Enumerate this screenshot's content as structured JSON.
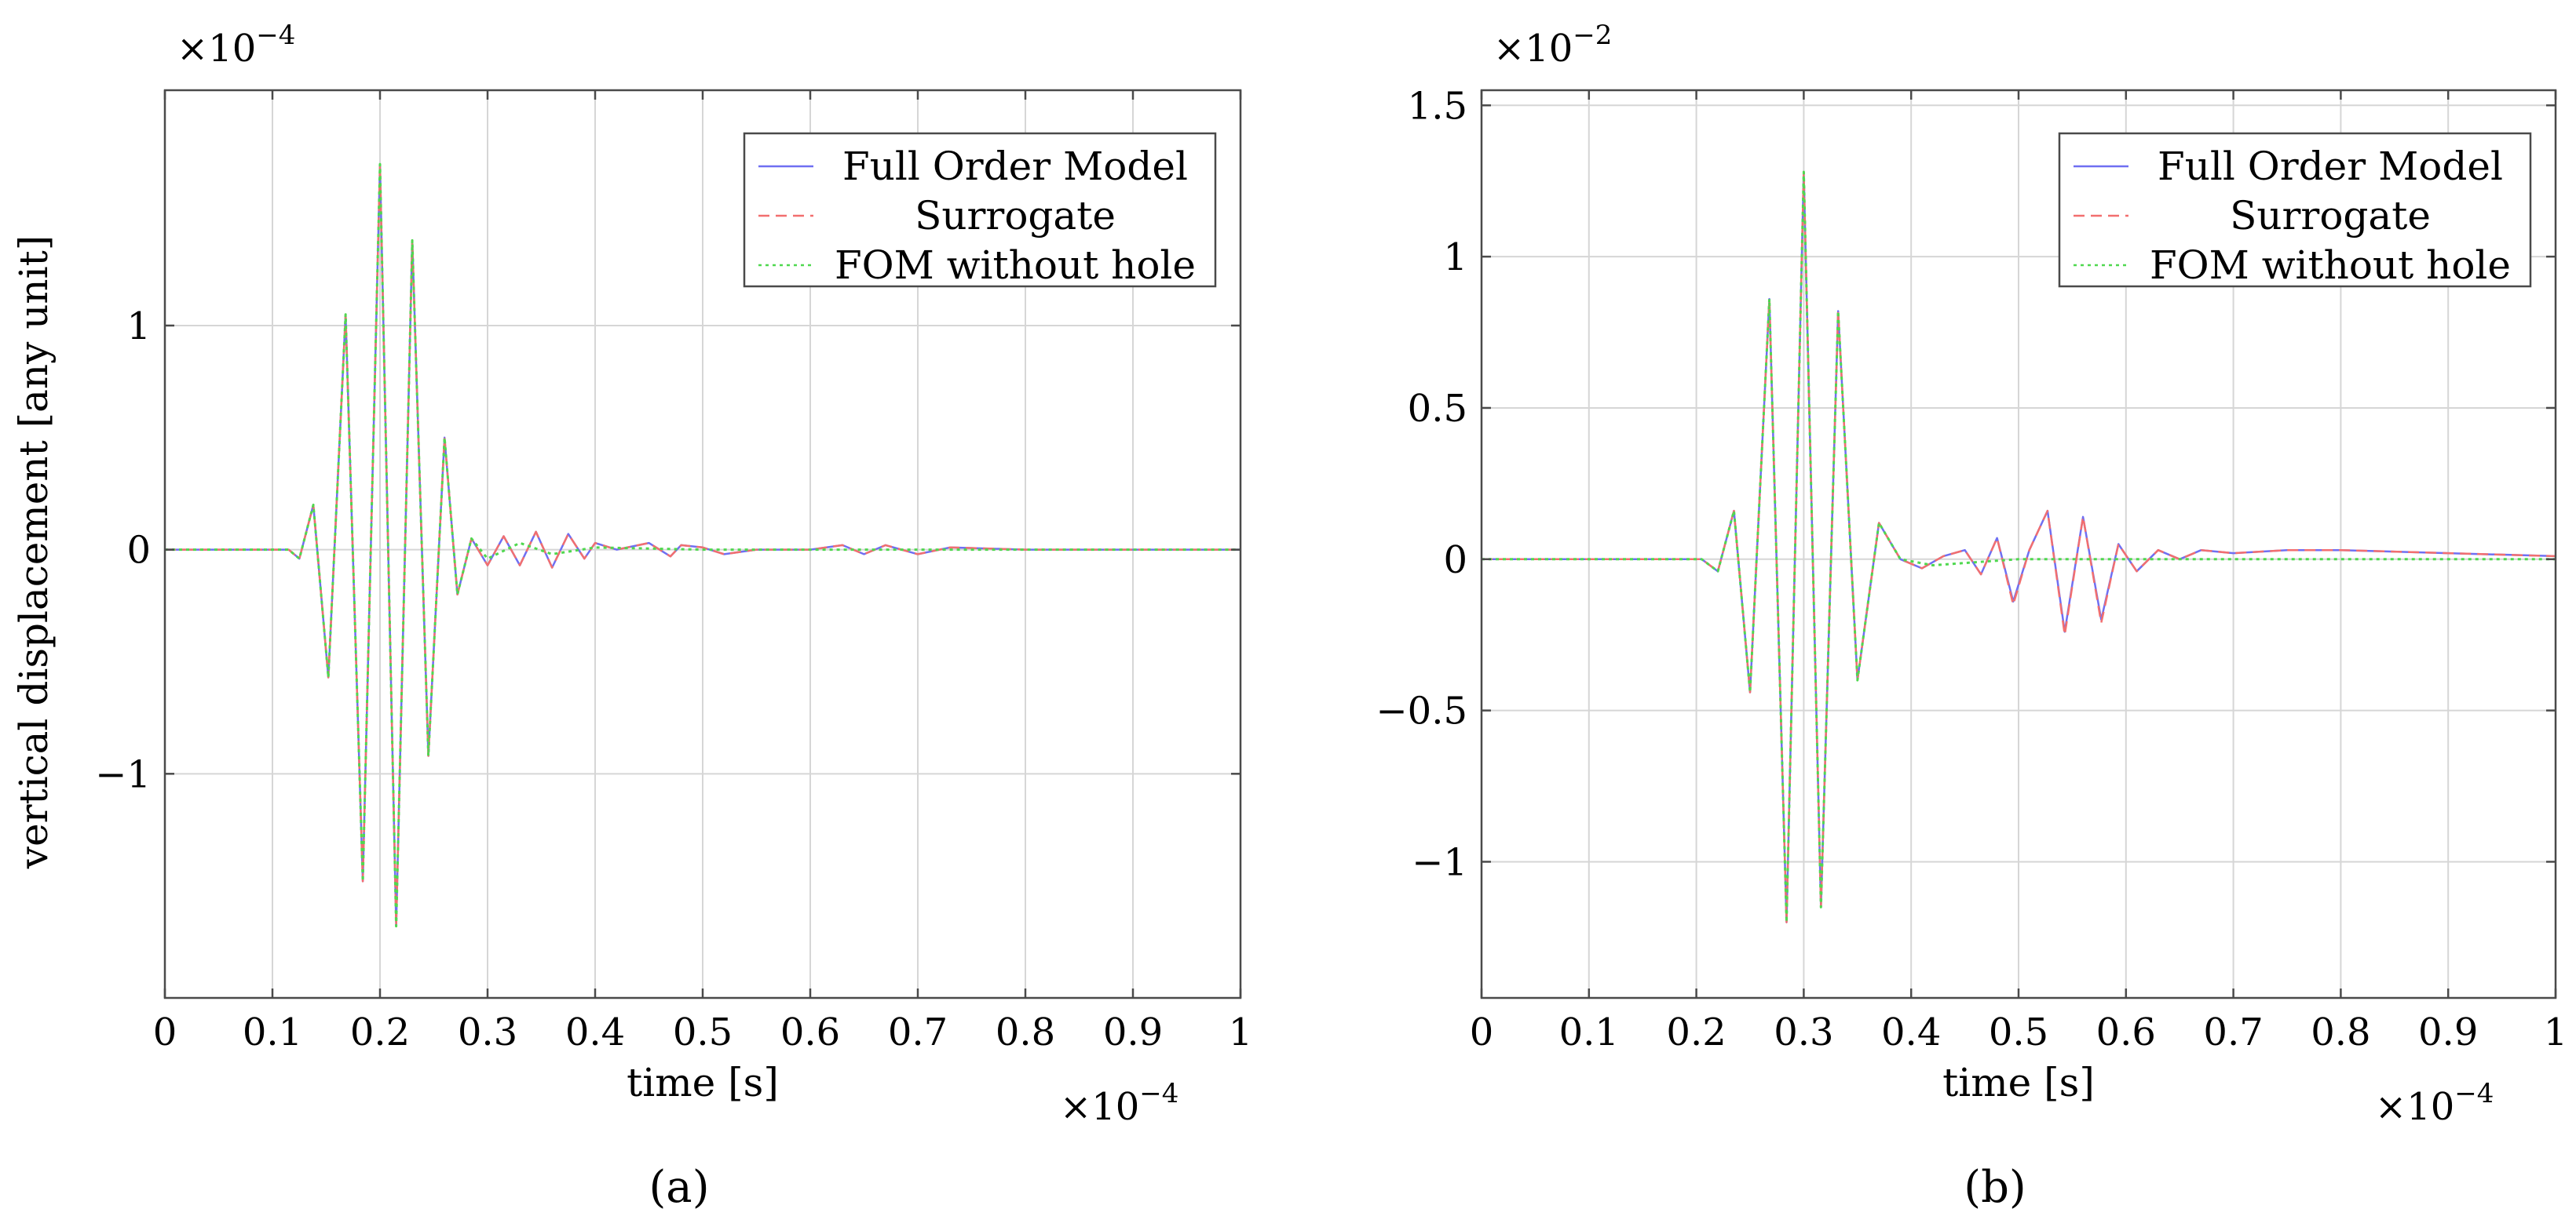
{
  "chart_data": [
    {
      "type": "line",
      "panel_label": "(a)",
      "exponent_y": "×10",
      "exponent_y_power": "−4",
      "exponent_x": "×10",
      "exponent_x_power": "−4",
      "xlabel": "time [s]",
      "ylabel": "vertical displacement [any unit]",
      "xlim": [
        0,
        1
      ],
      "ylim": [
        -2.0,
        2.05
      ],
      "xticks": [
        0,
        0.1,
        0.2,
        0.3,
        0.4,
        0.5,
        0.6,
        0.7,
        0.8,
        0.9,
        1
      ],
      "xtick_labels": [
        "0",
        "0.1",
        "0.2",
        "0.3",
        "0.4",
        "0.5",
        "0.6",
        "0.7",
        "0.8",
        "0.9",
        "1"
      ],
      "yticks": [
        -1,
        0,
        1
      ],
      "ytick_labels": [
        "−1",
        "0",
        "1"
      ],
      "grid": true,
      "legend_position": "top-right",
      "series": [
        {
          "name": "Full Order Model",
          "color": "#6f6ff2",
          "dash": "solid",
          "x": [
            0,
            0.115,
            0.125,
            0.138,
            0.152,
            0.168,
            0.184,
            0.2,
            0.215,
            0.23,
            0.245,
            0.26,
            0.272,
            0.285,
            0.3,
            0.315,
            0.33,
            0.345,
            0.36,
            0.375,
            0.39,
            0.4,
            0.42,
            0.45,
            0.47,
            0.48,
            0.5,
            0.52,
            0.55,
            0.6,
            0.63,
            0.65,
            0.67,
            0.7,
            0.73,
            0.8,
            0.9,
            1
          ],
          "y": [
            0,
            0,
            -0.04,
            0.2,
            -0.57,
            1.05,
            -1.48,
            1.72,
            -1.68,
            1.38,
            -0.92,
            0.5,
            -0.2,
            0.05,
            -0.07,
            0.06,
            -0.07,
            0.08,
            -0.08,
            0.07,
            -0.04,
            0.03,
            0.0,
            0.03,
            -0.03,
            0.02,
            0.01,
            -0.02,
            0.0,
            0.0,
            0.02,
            -0.02,
            0.02,
            -0.02,
            0.01,
            0.0,
            0.0,
            0.0
          ]
        },
        {
          "name": "Surrogate",
          "color": "#f26f6f",
          "dash": "dashed",
          "x": [
            0,
            0.115,
            0.125,
            0.138,
            0.152,
            0.168,
            0.184,
            0.2,
            0.215,
            0.23,
            0.245,
            0.26,
            0.272,
            0.285,
            0.3,
            0.315,
            0.33,
            0.345,
            0.36,
            0.375,
            0.39,
            0.4,
            0.42,
            0.45,
            0.47,
            0.48,
            0.5,
            0.52,
            0.55,
            0.6,
            0.63,
            0.65,
            0.67,
            0.7,
            0.73,
            0.8,
            0.9,
            1
          ],
          "y": [
            0,
            0,
            -0.04,
            0.2,
            -0.57,
            1.05,
            -1.48,
            1.72,
            -1.68,
            1.38,
            -0.92,
            0.5,
            -0.2,
            0.05,
            -0.07,
            0.06,
            -0.07,
            0.08,
            -0.08,
            0.07,
            -0.04,
            0.03,
            0.0,
            0.03,
            -0.03,
            0.02,
            0.01,
            -0.02,
            0.0,
            0.0,
            0.02,
            -0.02,
            0.02,
            -0.02,
            0.01,
            0.0,
            0.0,
            0.0
          ]
        },
        {
          "name": "FOM without hole",
          "color": "#4fd84f",
          "dash": "dotted",
          "x": [
            0,
            0.115,
            0.125,
            0.138,
            0.152,
            0.168,
            0.184,
            0.2,
            0.215,
            0.23,
            0.245,
            0.26,
            0.272,
            0.285,
            0.3,
            0.33,
            0.36,
            0.4,
            0.5,
            0.6,
            0.7,
            0.8,
            0.9,
            1
          ],
          "y": [
            0,
            0,
            -0.04,
            0.2,
            -0.57,
            1.05,
            -1.48,
            1.72,
            -1.68,
            1.38,
            -0.92,
            0.5,
            -0.2,
            0.05,
            -0.04,
            0.03,
            -0.02,
            0.01,
            0.0,
            0.0,
            0.0,
            0.0,
            0.0,
            0.0
          ]
        }
      ]
    },
    {
      "type": "line",
      "panel_label": "(b)",
      "exponent_y": "×10",
      "exponent_y_power": "−2",
      "exponent_x": "×10",
      "exponent_x_power": "−4",
      "xlabel": "time [s]",
      "ylabel": "",
      "xlim": [
        0,
        1
      ],
      "ylim": [
        -1.45,
        1.55
      ],
      "xticks": [
        0,
        0.1,
        0.2,
        0.3,
        0.4,
        0.5,
        0.6,
        0.7,
        0.8,
        0.9,
        1
      ],
      "xtick_labels": [
        "0",
        "0.1",
        "0.2",
        "0.3",
        "0.4",
        "0.5",
        "0.6",
        "0.7",
        "0.8",
        "0.9",
        "1"
      ],
      "yticks": [
        -1,
        -0.5,
        0,
        0.5,
        1,
        1.5
      ],
      "ytick_labels": [
        "−1",
        "−0.5",
        "0",
        "0.5",
        "1",
        "1.5"
      ],
      "grid": true,
      "legend_position": "top-right",
      "series": [
        {
          "name": "Full Order Model",
          "color": "#6f6ff2",
          "dash": "solid",
          "x": [
            0,
            0.205,
            0.22,
            0.235,
            0.25,
            0.268,
            0.284,
            0.3,
            0.316,
            0.332,
            0.35,
            0.37,
            0.39,
            0.41,
            0.43,
            0.45,
            0.465,
            0.48,
            0.495,
            0.51,
            0.527,
            0.543,
            0.56,
            0.577,
            0.593,
            0.61,
            0.63,
            0.65,
            0.67,
            0.7,
            0.75,
            0.8,
            0.9,
            1
          ],
          "y": [
            0,
            0,
            -0.04,
            0.16,
            -0.44,
            0.86,
            -1.2,
            1.28,
            -1.15,
            0.82,
            -0.4,
            0.12,
            0.0,
            -0.03,
            0.01,
            0.03,
            -0.05,
            0.07,
            -0.14,
            0.03,
            0.16,
            -0.24,
            0.14,
            -0.2,
            0.05,
            -0.04,
            0.03,
            0.0,
            0.03,
            0.02,
            0.03,
            0.03,
            0.02,
            0.01
          ]
        },
        {
          "name": "Surrogate",
          "color": "#f26f6f",
          "dash": "dashed",
          "x": [
            0,
            0.205,
            0.22,
            0.235,
            0.25,
            0.268,
            0.284,
            0.3,
            0.316,
            0.332,
            0.35,
            0.37,
            0.39,
            0.41,
            0.43,
            0.45,
            0.465,
            0.48,
            0.495,
            0.51,
            0.527,
            0.543,
            0.56,
            0.577,
            0.593,
            0.61,
            0.63,
            0.65,
            0.67,
            0.7,
            0.75,
            0.8,
            0.9,
            1
          ],
          "y": [
            0,
            0,
            -0.04,
            0.16,
            -0.44,
            0.86,
            -1.2,
            1.28,
            -1.15,
            0.82,
            -0.4,
            0.12,
            0.0,
            -0.03,
            0.01,
            0.03,
            -0.05,
            0.07,
            -0.15,
            0.03,
            0.16,
            -0.25,
            0.14,
            -0.21,
            0.05,
            -0.04,
            0.03,
            0.0,
            0.03,
            0.02,
            0.03,
            0.03,
            0.02,
            0.01
          ]
        },
        {
          "name": "FOM without hole",
          "color": "#4fd84f",
          "dash": "dotted",
          "x": [
            0,
            0.205,
            0.22,
            0.235,
            0.25,
            0.268,
            0.284,
            0.3,
            0.316,
            0.332,
            0.35,
            0.37,
            0.39,
            0.42,
            0.5,
            0.6,
            0.7,
            0.8,
            0.9,
            1
          ],
          "y": [
            0,
            0,
            -0.04,
            0.16,
            -0.44,
            0.86,
            -1.2,
            1.28,
            -1.15,
            0.82,
            -0.4,
            0.12,
            0.0,
            -0.02,
            0.0,
            0.0,
            0.0,
            0.0,
            0.0,
            0.0
          ]
        }
      ]
    }
  ]
}
